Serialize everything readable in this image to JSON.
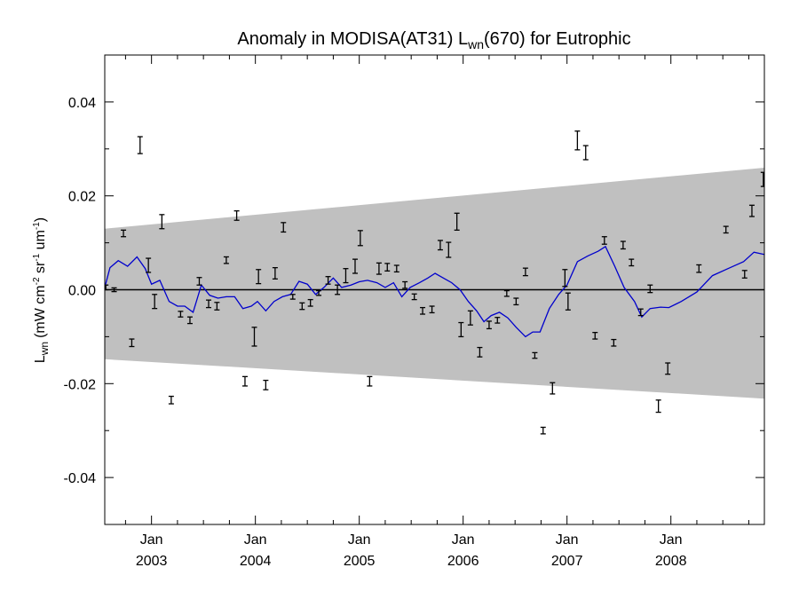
{
  "chart_data": {
    "type": "line",
    "title_main": "Anomaly in MODISA(AT31) L",
    "title_sub": "wn",
    "title_tail": "(670) for Eutrophic",
    "ylabel_main": "L",
    "ylabel_sub": "wn",
    "ylabel_units": "(mW cm",
    "ylabel_units_parts": [
      "-2",
      " sr",
      "-1",
      " um",
      "-1",
      ")"
    ],
    "ylim": [
      -0.05,
      0.05
    ],
    "xlim": [
      2002.55,
      2008.9
    ],
    "y_ticks": [
      {
        "value": 0.04,
        "label": "0.04"
      },
      {
        "value": 0.02,
        "label": "0.02"
      },
      {
        "value": 0.0,
        "label": "0.00"
      },
      {
        "value": -0.02,
        "label": "-0.02"
      },
      {
        "value": -0.04,
        "label": "-0.04"
      }
    ],
    "x_major_ticks": [
      {
        "value": 2003.0,
        "month": "Jan",
        "year": "2003"
      },
      {
        "value": 2004.0,
        "month": "Jan",
        "year": "2004"
      },
      {
        "value": 2005.0,
        "month": "Jan",
        "year": "2005"
      },
      {
        "value": 2006.0,
        "month": "Jan",
        "year": "2006"
      },
      {
        "value": 2007.0,
        "month": "Jan",
        "year": "2007"
      },
      {
        "value": 2008.0,
        "month": "Jan",
        "year": "2008"
      }
    ],
    "band": {
      "color": "#c0c0c0",
      "upper": [
        [
          2002.55,
          0.013
        ],
        [
          2008.9,
          0.026
        ]
      ],
      "lower": [
        [
          2002.55,
          -0.0148
        ],
        [
          2008.9,
          -0.0232
        ]
      ]
    },
    "zero_line": 0.0,
    "error_bars": [
      {
        "x": 2002.56,
        "y": 0.0005,
        "err": 0.0005
      },
      {
        "x": 2002.64,
        "y": 0.0,
        "err": 0.0004
      },
      {
        "x": 2002.73,
        "y": 0.012,
        "err": 0.0007
      },
      {
        "x": 2002.81,
        "y": -0.0113,
        "err": 0.0008
      },
      {
        "x": 2002.89,
        "y": 0.0308,
        "err": 0.0018
      },
      {
        "x": 2002.97,
        "y": 0.0052,
        "err": 0.0015
      },
      {
        "x": 2003.03,
        "y": -0.0025,
        "err": 0.0015
      },
      {
        "x": 2003.1,
        "y": 0.0145,
        "err": 0.0015
      },
      {
        "x": 2003.19,
        "y": -0.0235,
        "err": 0.0008
      },
      {
        "x": 2003.28,
        "y": -0.0052,
        "err": 0.0006
      },
      {
        "x": 2003.37,
        "y": -0.0065,
        "err": 0.0007
      },
      {
        "x": 2003.46,
        "y": 0.0018,
        "err": 0.0008
      },
      {
        "x": 2003.55,
        "y": -0.003,
        "err": 0.0008
      },
      {
        "x": 2003.63,
        "y": -0.0035,
        "err": 0.0008
      },
      {
        "x": 2003.72,
        "y": 0.0063,
        "err": 0.0007
      },
      {
        "x": 2003.82,
        "y": 0.0158,
        "err": 0.001
      },
      {
        "x": 2003.9,
        "y": -0.0195,
        "err": 0.001
      },
      {
        "x": 2003.99,
        "y": -0.01,
        "err": 0.002
      },
      {
        "x": 2004.03,
        "y": 0.0028,
        "err": 0.0015
      },
      {
        "x": 2004.1,
        "y": -0.0203,
        "err": 0.001
      },
      {
        "x": 2004.19,
        "y": 0.0035,
        "err": 0.0012
      },
      {
        "x": 2004.27,
        "y": 0.0133,
        "err": 0.001
      },
      {
        "x": 2004.36,
        "y": -0.0015,
        "err": 0.0005
      },
      {
        "x": 2004.45,
        "y": -0.0035,
        "err": 0.0007
      },
      {
        "x": 2004.53,
        "y": -0.0028,
        "err": 0.0007
      },
      {
        "x": 2004.61,
        "y": -0.0007,
        "err": 0.0005
      },
      {
        "x": 2004.7,
        "y": 0.002,
        "err": 0.0008
      },
      {
        "x": 2004.79,
        "y": 0.0,
        "err": 0.001
      },
      {
        "x": 2004.87,
        "y": 0.003,
        "err": 0.0015
      },
      {
        "x": 2004.96,
        "y": 0.005,
        "err": 0.0015
      },
      {
        "x": 2005.01,
        "y": 0.011,
        "err": 0.0016
      },
      {
        "x": 2005.1,
        "y": -0.0195,
        "err": 0.001
      },
      {
        "x": 2005.19,
        "y": 0.0045,
        "err": 0.0012
      },
      {
        "x": 2005.27,
        "y": 0.0048,
        "err": 0.0008
      },
      {
        "x": 2005.36,
        "y": 0.0045,
        "err": 0.0007
      },
      {
        "x": 2005.44,
        "y": 0.001,
        "err": 0.0007
      },
      {
        "x": 2005.53,
        "y": -0.0015,
        "err": 0.0006
      },
      {
        "x": 2005.61,
        "y": -0.0045,
        "err": 0.0007
      },
      {
        "x": 2005.7,
        "y": -0.0042,
        "err": 0.0007
      },
      {
        "x": 2005.78,
        "y": 0.0095,
        "err": 0.001
      },
      {
        "x": 2005.86,
        "y": 0.0085,
        "err": 0.0016
      },
      {
        "x": 2005.94,
        "y": 0.0145,
        "err": 0.0018
      },
      {
        "x": 2005.98,
        "y": -0.0085,
        "err": 0.0015
      },
      {
        "x": 2006.07,
        "y": -0.006,
        "err": 0.0015
      },
      {
        "x": 2006.16,
        "y": -0.0133,
        "err": 0.001
      },
      {
        "x": 2006.25,
        "y": -0.0075,
        "err": 0.0008
      },
      {
        "x": 2006.33,
        "y": -0.0065,
        "err": 0.0006
      },
      {
        "x": 2006.42,
        "y": -0.0008,
        "err": 0.0006
      },
      {
        "x": 2006.51,
        "y": -0.0025,
        "err": 0.0007
      },
      {
        "x": 2006.6,
        "y": 0.0038,
        "err": 0.0008
      },
      {
        "x": 2006.69,
        "y": -0.014,
        "err": 0.0006
      },
      {
        "x": 2006.77,
        "y": -0.03,
        "err": 0.0007
      },
      {
        "x": 2006.86,
        "y": -0.021,
        "err": 0.0012
      },
      {
        "x": 2006.98,
        "y": 0.0025,
        "err": 0.0018
      },
      {
        "x": 2007.01,
        "y": -0.0025,
        "err": 0.0018
      },
      {
        "x": 2007.1,
        "y": 0.0318,
        "err": 0.002
      },
      {
        "x": 2007.18,
        "y": 0.0292,
        "err": 0.0015
      },
      {
        "x": 2007.27,
        "y": -0.0098,
        "err": 0.0007
      },
      {
        "x": 2007.36,
        "y": 0.0105,
        "err": 0.0008
      },
      {
        "x": 2007.45,
        "y": -0.0113,
        "err": 0.0007
      },
      {
        "x": 2007.54,
        "y": 0.0095,
        "err": 0.0008
      },
      {
        "x": 2007.62,
        "y": 0.0058,
        "err": 0.0007
      },
      {
        "x": 2007.71,
        "y": -0.0048,
        "err": 0.0007
      },
      {
        "x": 2007.8,
        "y": 0.0002,
        "err": 0.0008
      },
      {
        "x": 2007.88,
        "y": -0.0248,
        "err": 0.0013
      },
      {
        "x": 2007.97,
        "y": -0.0168,
        "err": 0.0012
      },
      {
        "x": 2008.27,
        "y": 0.0045,
        "err": 0.0008
      },
      {
        "x": 2008.53,
        "y": 0.0128,
        "err": 0.0007
      },
      {
        "x": 2008.71,
        "y": 0.0033,
        "err": 0.0008
      },
      {
        "x": 2008.78,
        "y": 0.0168,
        "err": 0.0012
      },
      {
        "x": 2008.89,
        "y": 0.0235,
        "err": 0.0015
      }
    ],
    "trend_line": {
      "color": "#0000cc",
      "points": [
        [
          2002.55,
          0.0005
        ],
        [
          2002.6,
          0.0047
        ],
        [
          2002.68,
          0.0062
        ],
        [
          2002.77,
          0.005
        ],
        [
          2002.86,
          0.007
        ],
        [
          2002.94,
          0.0045
        ],
        [
          2003.0,
          0.0012
        ],
        [
          2003.08,
          0.002
        ],
        [
          2003.17,
          -0.0025
        ],
        [
          2003.25,
          -0.0035
        ],
        [
          2003.32,
          -0.0035
        ],
        [
          2003.4,
          -0.0048
        ],
        [
          2003.48,
          0.001
        ],
        [
          2003.56,
          -0.0012
        ],
        [
          2003.64,
          -0.0018
        ],
        [
          2003.72,
          -0.0015
        ],
        [
          2003.8,
          -0.0015
        ],
        [
          2003.88,
          -0.004
        ],
        [
          2003.96,
          -0.0035
        ],
        [
          2004.02,
          -0.0025
        ],
        [
          2004.1,
          -0.0045
        ],
        [
          2004.18,
          -0.0025
        ],
        [
          2004.26,
          -0.0015
        ],
        [
          2004.34,
          -0.001
        ],
        [
          2004.42,
          0.0018
        ],
        [
          2004.5,
          0.0012
        ],
        [
          2004.58,
          -0.001
        ],
        [
          2004.66,
          0.0005
        ],
        [
          2004.75,
          0.0025
        ],
        [
          2004.83,
          0.0005
        ],
        [
          2004.92,
          0.001
        ],
        [
          2005.0,
          0.0017
        ],
        [
          2005.08,
          0.002
        ],
        [
          2005.17,
          0.0015
        ],
        [
          2005.25,
          0.0005
        ],
        [
          2005.33,
          0.0015
        ],
        [
          2005.41,
          -0.0015
        ],
        [
          2005.49,
          0.0005
        ],
        [
          2005.58,
          0.0015
        ],
        [
          2005.66,
          0.0025
        ],
        [
          2005.73,
          0.0035
        ],
        [
          2005.81,
          0.0025
        ],
        [
          2005.89,
          0.0015
        ],
        [
          2005.97,
          0.0
        ],
        [
          2006.05,
          -0.0025
        ],
        [
          2006.13,
          -0.0045
        ],
        [
          2006.2,
          -0.0068
        ],
        [
          2006.27,
          -0.0055
        ],
        [
          2006.35,
          -0.0048
        ],
        [
          2006.43,
          -0.006
        ],
        [
          2006.51,
          -0.008
        ],
        [
          2006.6,
          -0.01
        ],
        [
          2006.67,
          -0.009
        ],
        [
          2006.74,
          -0.009
        ],
        [
          2006.83,
          -0.004
        ],
        [
          2006.92,
          -0.001
        ],
        [
          2007.0,
          0.001
        ],
        [
          2007.1,
          0.006
        ],
        [
          2007.2,
          0.0072
        ],
        [
          2007.3,
          0.0082
        ],
        [
          2007.37,
          0.0092
        ],
        [
          2007.46,
          0.005
        ],
        [
          2007.55,
          0.0005
        ],
        [
          2007.65,
          -0.0025
        ],
        [
          2007.72,
          -0.0058
        ],
        [
          2007.8,
          -0.004
        ],
        [
          2007.9,
          -0.0037
        ],
        [
          2007.98,
          -0.0038
        ],
        [
          2008.1,
          -0.0025
        ],
        [
          2008.25,
          -0.0005
        ],
        [
          2008.4,
          0.003
        ],
        [
          2008.55,
          0.0045
        ],
        [
          2008.7,
          0.006
        ],
        [
          2008.8,
          0.008
        ],
        [
          2008.9,
          0.0075
        ]
      ]
    }
  }
}
